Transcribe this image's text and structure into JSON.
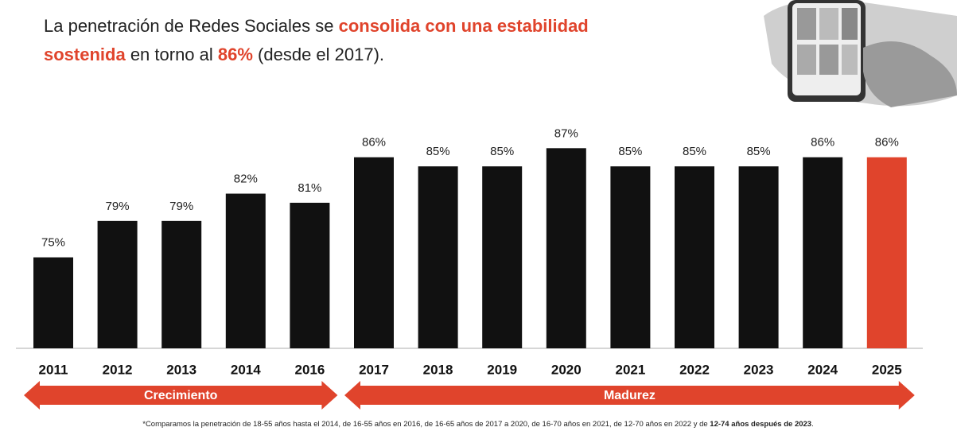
{
  "chart_data": {
    "type": "bar",
    "title_lines": [
      [
        {
          "text": "La penetración de Redes Sociales se ",
          "highlight": false
        },
        {
          "text": "consolida con una estabilidad",
          "highlight": true
        }
      ],
      [
        {
          "text": "sostenida",
          "highlight": true
        },
        {
          "text": " en torno al ",
          "highlight": false
        },
        {
          "text": "86%",
          "highlight": true
        },
        {
          "text": " (desde el 2017).",
          "highlight": false
        }
      ]
    ],
    "highlight_color": "#e0442c",
    "categories": [
      "2011",
      "2012",
      "2013",
      "2014",
      "2016",
      "2017",
      "2018",
      "2019",
      "2020",
      "2021",
      "2022",
      "2023",
      "2024",
      "2025"
    ],
    "values": [
      75,
      79,
      79,
      82,
      81,
      86,
      85,
      85,
      87,
      85,
      85,
      85,
      86,
      86
    ],
    "value_labels": [
      "75%",
      "79%",
      "79%",
      "82%",
      "81%",
      "86%",
      "85%",
      "85%",
      "87%",
      "85%",
      "85%",
      "85%",
      "86%",
      "86%"
    ],
    "colors": [
      "#111111",
      "#111111",
      "#111111",
      "#111111",
      "#111111",
      "#111111",
      "#111111",
      "#111111",
      "#111111",
      "#111111",
      "#111111",
      "#111111",
      "#111111",
      "#e0442c"
    ],
    "ylim": [
      65,
      90
    ],
    "phases": [
      {
        "label": "Crecimiento",
        "from": 0,
        "to": 4
      },
      {
        "label": "Madurez",
        "from": 5,
        "to": 13
      }
    ],
    "footnote": [
      {
        "text": "*Comparamos la penetración de 18-55 años hasta el 2014, de 16-55 años en 2016, de 16-65 años de 2017 a 2020, de 16-70 años en 2021, de 12-70 años en 2022 y de ",
        "bold": false
      },
      {
        "text": "12-74 años después de 2023",
        "bold": true
      },
      {
        "text": ".",
        "bold": false
      }
    ]
  }
}
